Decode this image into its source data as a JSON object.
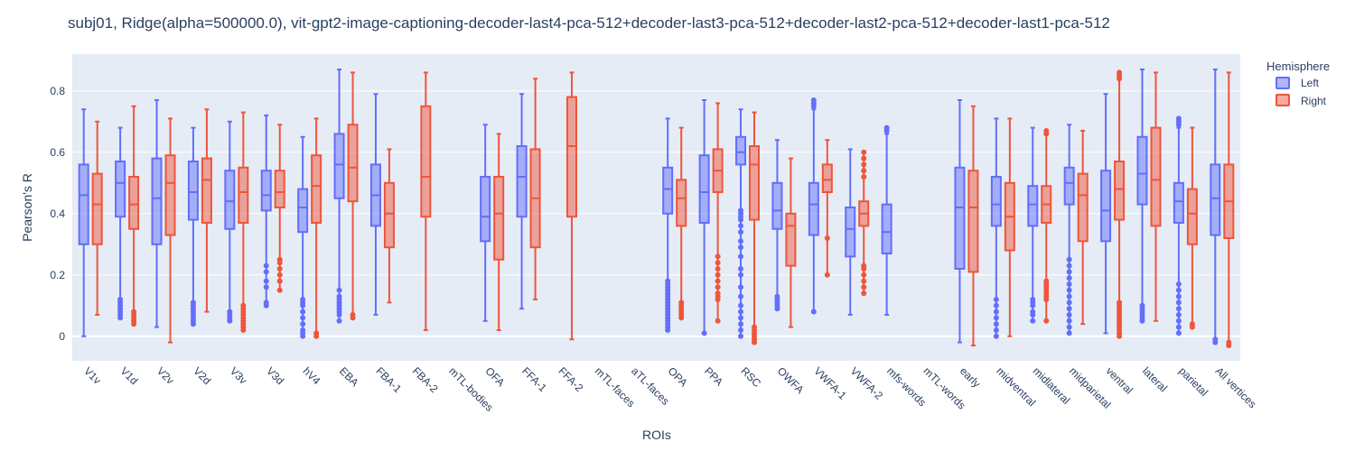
{
  "chart_data": {
    "type": "box",
    "title": "subj01, Ridge(alpha=500000.0), vit-gpt2-image-captioning-decoder-last4-pca-512+decoder-last3-pca-512+decoder-last2-pca-512+decoder-last1-pca-512",
    "xlabel": "ROIs",
    "ylabel": "Pearson's R",
    "ylim": [
      -0.08,
      0.92
    ],
    "yticks": [
      0,
      0.2,
      0.4,
      0.6,
      0.8
    ],
    "ytick_labels": [
      "0",
      "0.2",
      "0.4",
      "0.6",
      "0.8"
    ],
    "grid": true,
    "legend": {
      "title": "Hemisphere",
      "placement": "top-right outside"
    },
    "colors": {
      "Left": "#636efa",
      "Right": "#ef553b",
      "plot_bg": "#e5ecf6"
    },
    "categories": [
      "V1v",
      "V1d",
      "V2v",
      "V2d",
      "V3v",
      "V3d",
      "hV4",
      "EBA",
      "FBA-1",
      "FBA-2",
      "mTL-bodies",
      "OFA",
      "FFA-1",
      "FFA-2",
      "mTL-faces",
      "aTL-faces",
      "OPA",
      "PPA",
      "RSC",
      "OWFA",
      "VWFA-1",
      "VWFA-2",
      "mfs-words",
      "mTL-words",
      "early",
      "midventral",
      "midlateral",
      "midparietal",
      "ventral",
      "lateral",
      "parietal",
      "All vertices"
    ],
    "series": [
      {
        "name": "Left",
        "boxes": [
          {
            "category": "V1v",
            "min": 0.0,
            "q1": 0.3,
            "median": 0.46,
            "q3": 0.56,
            "max": 0.74,
            "outliers": []
          },
          {
            "category": "V1d",
            "min": 0.06,
            "q1": 0.39,
            "median": 0.5,
            "q3": 0.57,
            "max": 0.68,
            "outliers": [
              0.06,
              0.07,
              0.08,
              0.09,
              0.1,
              0.11,
              0.12
            ]
          },
          {
            "category": "V2v",
            "min": 0.03,
            "q1": 0.3,
            "median": 0.45,
            "q3": 0.58,
            "max": 0.77,
            "outliers": []
          },
          {
            "category": "V2d",
            "min": 0.04,
            "q1": 0.38,
            "median": 0.47,
            "q3": 0.57,
            "max": 0.68,
            "outliers": [
              0.04,
              0.05,
              0.06,
              0.07,
              0.08,
              0.09,
              0.1,
              0.11
            ]
          },
          {
            "category": "V3v",
            "min": 0.05,
            "q1": 0.35,
            "median": 0.44,
            "q3": 0.54,
            "max": 0.7,
            "outliers": [
              0.05,
              0.06,
              0.07,
              0.08
            ]
          },
          {
            "category": "V3d",
            "min": 0.1,
            "q1": 0.41,
            "median": 0.46,
            "q3": 0.54,
            "max": 0.72,
            "outliers": [
              0.1,
              0.11,
              0.16,
              0.18,
              0.21,
              0.23
            ]
          },
          {
            "category": "hV4",
            "min": 0.0,
            "q1": 0.34,
            "median": 0.42,
            "q3": 0.48,
            "max": 0.65,
            "outliers": [
              0.0,
              0.01,
              0.02,
              0.04,
              0.06,
              0.08,
              0.1,
              0.11,
              0.12
            ]
          },
          {
            "category": "EBA",
            "min": 0.05,
            "q1": 0.45,
            "median": 0.56,
            "q3": 0.66,
            "max": 0.87,
            "outliers": [
              0.05,
              0.07,
              0.08,
              0.09,
              0.1,
              0.11,
              0.12,
              0.13,
              0.15
            ]
          },
          {
            "category": "FBA-1",
            "min": 0.07,
            "q1": 0.36,
            "median": 0.46,
            "q3": 0.56,
            "max": 0.79,
            "outliers": []
          },
          {
            "category": "FBA-2",
            "empty": true
          },
          {
            "category": "mTL-bodies",
            "empty": true
          },
          {
            "category": "OFA",
            "min": 0.05,
            "q1": 0.31,
            "median": 0.39,
            "q3": 0.52,
            "max": 0.69,
            "outliers": []
          },
          {
            "category": "FFA-1",
            "min": 0.09,
            "q1": 0.39,
            "median": 0.52,
            "q3": 0.62,
            "max": 0.79,
            "outliers": []
          },
          {
            "category": "FFA-2",
            "empty": true
          },
          {
            "category": "mTL-faces",
            "empty": true
          },
          {
            "category": "aTL-faces",
            "empty": true
          },
          {
            "category": "OPA",
            "min": 0.02,
            "q1": 0.4,
            "median": 0.48,
            "q3": 0.55,
            "max": 0.71,
            "outliers": [
              0.02,
              0.03,
              0.04,
              0.05,
              0.06,
              0.07,
              0.08,
              0.09,
              0.1,
              0.11,
              0.12,
              0.13,
              0.14,
              0.15,
              0.16,
              0.17,
              0.18
            ]
          },
          {
            "category": "PPA",
            "min": 0.01,
            "q1": 0.37,
            "median": 0.47,
            "q3": 0.59,
            "max": 0.77,
            "outliers": [
              0.01
            ]
          },
          {
            "category": "RSC",
            "min": 0.0,
            "q1": 0.56,
            "median": 0.6,
            "q3": 0.65,
            "max": 0.74,
            "outliers": [
              0.0,
              0.02,
              0.04,
              0.06,
              0.08,
              0.1,
              0.13,
              0.16,
              0.2,
              0.22,
              0.26,
              0.29,
              0.31,
              0.34,
              0.36,
              0.38,
              0.39,
              0.4,
              0.41
            ]
          },
          {
            "category": "OWFA",
            "min": 0.09,
            "q1": 0.35,
            "median": 0.41,
            "q3": 0.5,
            "max": 0.64,
            "outliers": [
              0.09,
              0.1,
              0.11,
              0.12,
              0.13
            ]
          },
          {
            "category": "VWFA-1",
            "min": 0.08,
            "q1": 0.33,
            "median": 0.43,
            "q3": 0.5,
            "max": 0.74,
            "outliers": [
              0.08,
              0.75,
              0.76,
              0.77
            ]
          },
          {
            "category": "VWFA-2",
            "min": 0.07,
            "q1": 0.26,
            "median": 0.35,
            "q3": 0.42,
            "max": 0.61,
            "outliers": []
          },
          {
            "category": "mfs-words",
            "min": 0.07,
            "q1": 0.27,
            "median": 0.34,
            "q3": 0.43,
            "max": 0.66,
            "outliers": [
              0.67,
              0.68
            ]
          },
          {
            "category": "mTL-words",
            "empty": true
          },
          {
            "category": "early",
            "min": -0.02,
            "q1": 0.22,
            "median": 0.42,
            "q3": 0.55,
            "max": 0.77,
            "outliers": []
          },
          {
            "category": "midventral",
            "min": 0.0,
            "q1": 0.36,
            "median": 0.43,
            "q3": 0.52,
            "max": 0.71,
            "outliers": [
              0.0,
              0.02,
              0.04,
              0.06,
              0.08,
              0.1,
              0.12
            ]
          },
          {
            "category": "midlateral",
            "min": 0.05,
            "q1": 0.36,
            "median": 0.43,
            "q3": 0.49,
            "max": 0.68,
            "outliers": [
              0.05,
              0.07,
              0.08,
              0.1,
              0.11,
              0.12
            ]
          },
          {
            "category": "midparietal",
            "min": 0.01,
            "q1": 0.43,
            "median": 0.5,
            "q3": 0.55,
            "max": 0.69,
            "outliers": [
              0.01,
              0.03,
              0.05,
              0.07,
              0.09,
              0.11,
              0.13,
              0.15,
              0.17,
              0.19,
              0.21,
              0.23,
              0.25
            ]
          },
          {
            "category": "ventral",
            "min": 0.01,
            "q1": 0.31,
            "median": 0.41,
            "q3": 0.54,
            "max": 0.79,
            "outliers": []
          },
          {
            "category": "lateral",
            "min": 0.05,
            "q1": 0.43,
            "median": 0.53,
            "q3": 0.65,
            "max": 0.87,
            "outliers": [
              0.05,
              0.06,
              0.07,
              0.08,
              0.09,
              0.1
            ]
          },
          {
            "category": "parietal",
            "min": 0.01,
            "q1": 0.37,
            "median": 0.44,
            "q3": 0.5,
            "max": 0.68,
            "outliers": [
              0.01,
              0.03,
              0.05,
              0.07,
              0.09,
              0.11,
              0.13,
              0.15,
              0.17,
              0.69,
              0.7,
              0.71
            ]
          },
          {
            "category": "All vertices",
            "min": -0.02,
            "q1": 0.33,
            "median": 0.45,
            "q3": 0.56,
            "max": 0.87,
            "outliers": [
              -0.02,
              -0.01
            ]
          }
        ]
      },
      {
        "name": "Right",
        "boxes": [
          {
            "category": "V1v",
            "min": 0.07,
            "q1": 0.3,
            "median": 0.43,
            "q3": 0.53,
            "max": 0.7,
            "outliers": []
          },
          {
            "category": "V1d",
            "min": 0.04,
            "q1": 0.35,
            "median": 0.43,
            "q3": 0.52,
            "max": 0.75,
            "outliers": [
              0.04,
              0.05,
              0.06,
              0.07,
              0.08
            ]
          },
          {
            "category": "V2v",
            "min": -0.02,
            "q1": 0.33,
            "median": 0.5,
            "q3": 0.59,
            "max": 0.71,
            "outliers": []
          },
          {
            "category": "V2d",
            "min": 0.08,
            "q1": 0.37,
            "median": 0.51,
            "q3": 0.58,
            "max": 0.74,
            "outliers": []
          },
          {
            "category": "V3v",
            "min": 0.02,
            "q1": 0.37,
            "median": 0.47,
            "q3": 0.55,
            "max": 0.73,
            "outliers": [
              0.02,
              0.03,
              0.04,
              0.05,
              0.06,
              0.07,
              0.08,
              0.09,
              0.1
            ]
          },
          {
            "category": "V3d",
            "min": 0.15,
            "q1": 0.42,
            "median": 0.47,
            "q3": 0.54,
            "max": 0.69,
            "outliers": [
              0.15,
              0.18,
              0.2,
              0.22,
              0.24,
              0.25
            ]
          },
          {
            "category": "hV4",
            "min": 0.0,
            "q1": 0.37,
            "median": 0.49,
            "q3": 0.59,
            "max": 0.71,
            "outliers": [
              0.0,
              0.01
            ]
          },
          {
            "category": "EBA",
            "min": 0.06,
            "q1": 0.44,
            "median": 0.55,
            "q3": 0.69,
            "max": 0.86,
            "outliers": [
              0.06,
              0.07
            ]
          },
          {
            "category": "FBA-1",
            "min": 0.11,
            "q1": 0.29,
            "median": 0.4,
            "q3": 0.5,
            "max": 0.61,
            "outliers": []
          },
          {
            "category": "FBA-2",
            "min": 0.02,
            "q1": 0.39,
            "median": 0.52,
            "q3": 0.75,
            "max": 0.86,
            "outliers": []
          },
          {
            "category": "mTL-bodies",
            "empty": true
          },
          {
            "category": "OFA",
            "min": 0.02,
            "q1": 0.25,
            "median": 0.4,
            "q3": 0.52,
            "max": 0.66,
            "outliers": []
          },
          {
            "category": "FFA-1",
            "min": 0.12,
            "q1": 0.29,
            "median": 0.45,
            "q3": 0.61,
            "max": 0.84,
            "outliers": []
          },
          {
            "category": "FFA-2",
            "min": -0.01,
            "q1": 0.39,
            "median": 0.62,
            "q3": 0.78,
            "max": 0.86,
            "outliers": []
          },
          {
            "category": "mTL-faces",
            "empty": true
          },
          {
            "category": "aTL-faces",
            "empty": true
          },
          {
            "category": "OPA",
            "min": 0.06,
            "q1": 0.36,
            "median": 0.45,
            "q3": 0.51,
            "max": 0.68,
            "outliers": [
              0.06,
              0.07,
              0.08,
              0.09,
              0.1,
              0.11
            ]
          },
          {
            "category": "PPA",
            "min": 0.05,
            "q1": 0.47,
            "median": 0.54,
            "q3": 0.61,
            "max": 0.76,
            "outliers": [
              0.05,
              0.12,
              0.13,
              0.14,
              0.16,
              0.18,
              0.2,
              0.22,
              0.24,
              0.26
            ]
          },
          {
            "category": "RSC",
            "min": -0.02,
            "q1": 0.38,
            "median": 0.56,
            "q3": 0.62,
            "max": 0.73,
            "outliers": [
              -0.02,
              -0.01,
              0.0,
              0.01,
              0.02,
              0.03
            ]
          },
          {
            "category": "OWFA",
            "min": 0.03,
            "q1": 0.23,
            "median": 0.36,
            "q3": 0.4,
            "max": 0.58,
            "outliers": []
          },
          {
            "category": "VWFA-1",
            "min": 0.2,
            "q1": 0.47,
            "median": 0.51,
            "q3": 0.56,
            "max": 0.64,
            "outliers": [
              0.2,
              0.32
            ]
          },
          {
            "category": "VWFA-2",
            "min": 0.14,
            "q1": 0.36,
            "median": 0.4,
            "q3": 0.44,
            "max": 0.6,
            "outliers": [
              0.14,
              0.16,
              0.18,
              0.2,
              0.22,
              0.23,
              0.52,
              0.54,
              0.56,
              0.58,
              0.6
            ]
          },
          {
            "category": "mfs-words",
            "empty": true
          },
          {
            "category": "mTL-words",
            "empty": true
          },
          {
            "category": "early",
            "min": -0.03,
            "q1": 0.21,
            "median": 0.42,
            "q3": 0.54,
            "max": 0.75,
            "outliers": []
          },
          {
            "category": "midventral",
            "min": 0.0,
            "q1": 0.28,
            "median": 0.39,
            "q3": 0.5,
            "max": 0.71,
            "outliers": []
          },
          {
            "category": "midlateral",
            "min": 0.05,
            "q1": 0.37,
            "median": 0.43,
            "q3": 0.49,
            "max": 0.66,
            "outliers": [
              0.05,
              0.12,
              0.13,
              0.14,
              0.15,
              0.16,
              0.17,
              0.18,
              0.66,
              0.67
            ]
          },
          {
            "category": "midparietal",
            "min": 0.04,
            "q1": 0.31,
            "median": 0.46,
            "q3": 0.53,
            "max": 0.67,
            "outliers": []
          },
          {
            "category": "ventral",
            "min": 0.0,
            "q1": 0.38,
            "median": 0.48,
            "q3": 0.57,
            "max": 0.84,
            "outliers": [
              0.0,
              0.01,
              0.02,
              0.03,
              0.04,
              0.05,
              0.06,
              0.07,
              0.08,
              0.09,
              0.1,
              0.11,
              0.84,
              0.85,
              0.86
            ]
          },
          {
            "category": "lateral",
            "min": 0.05,
            "q1": 0.36,
            "median": 0.51,
            "q3": 0.68,
            "max": 0.86,
            "outliers": []
          },
          {
            "category": "parietal",
            "min": 0.03,
            "q1": 0.3,
            "median": 0.4,
            "q3": 0.48,
            "max": 0.68,
            "outliers": [
              0.03,
              0.04
            ]
          },
          {
            "category": "All vertices",
            "min": -0.03,
            "q1": 0.32,
            "median": 0.44,
            "q3": 0.56,
            "max": 0.86,
            "outliers": [
              -0.03,
              -0.02
            ]
          }
        ]
      }
    ]
  }
}
